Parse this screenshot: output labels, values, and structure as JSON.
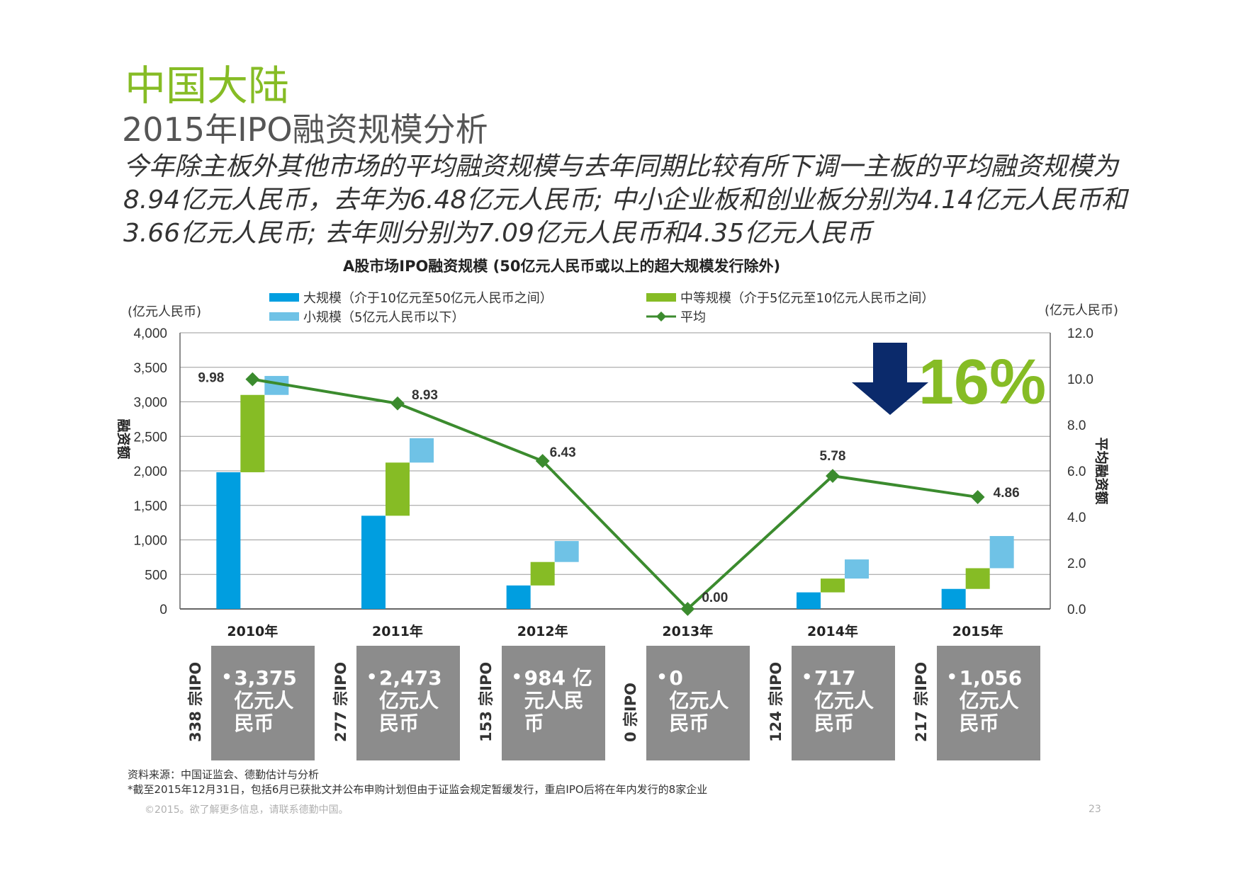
{
  "header": {
    "region": "中国大陆",
    "title": "2015年IPO融资规模分析",
    "summary": "今年除主板外其他市场的平均融资规模与去年同期比较有所下调一主板的平均融资规模为8.94亿元人民币，去年为6.48亿元人民币; 中小企业板和创业板分别为4.14亿元人民币和3.66亿元人民币; 去年则分别为7.09亿元人民币和4.35亿元人民币"
  },
  "chart_data": {
    "type": "bar",
    "title": "A股市场IPO融资规模 (50亿元人民币或以上的超大规模发行除外)",
    "categories": [
      "2010年",
      "2011年",
      "2012年",
      "2013年",
      "2014年",
      "2015年"
    ],
    "y_left": {
      "unit": "(亿元人民币)",
      "label": "融资额",
      "ylim": [
        0,
        4000
      ],
      "ticks": [
        "0",
        "500",
        "1,000",
        "1,500",
        "2,000",
        "2,500",
        "3,000",
        "3,500",
        "4,000"
      ]
    },
    "y_right": {
      "unit": "(亿元人民币)",
      "label": "平均融资额",
      "ylim": [
        0,
        12
      ],
      "ticks": [
        "0.0",
        "2.0",
        "4.0",
        "6.0",
        "8.0",
        "10.0",
        "12.0"
      ]
    },
    "series": [
      {
        "name": "大规模（介于10亿元至50亿元人民币之间）",
        "color": "#009ee0",
        "values": [
          1980,
          1350,
          340,
          0,
          240,
          290
        ]
      },
      {
        "name": "中等规模（介于5亿元至10亿元人民币之间）",
        "color": "#86bc25",
        "values": [
          1120,
          770,
          340,
          0,
          200,
          300
        ]
      },
      {
        "name": "小规模（5亿元人民币以下）",
        "color": "#6fc2e6",
        "values": [
          275,
          353,
          304,
          0,
          277,
          466
        ]
      },
      {
        "name": "平均",
        "color": "#3b8b2e",
        "type": "line",
        "values": [
          9.98,
          8.93,
          6.43,
          0.0,
          5.78,
          4.86
        ],
        "labels": [
          "9.98",
          "8.93",
          "6.43",
          "0.00",
          "5.78",
          "4.86"
        ]
      }
    ],
    "legend_placement": "top",
    "grid": true,
    "annotation": {
      "text": "16%",
      "arrow": "down",
      "arrow_color": "#0b2a6b"
    }
  },
  "stats": [
    {
      "deals": "338 宗IPO",
      "amount": "3,375",
      "unit": "亿元人民币"
    },
    {
      "deals": "277 宗IPO",
      "amount": "2,473",
      "unit": "亿元人民币"
    },
    {
      "deals": "153 宗IPO",
      "amount": "984 亿",
      "unit": "元人民币"
    },
    {
      "deals": "0 宗IPO",
      "amount": "0",
      "unit": "亿元人民币"
    },
    {
      "deals": "124 宗IPO",
      "amount": "717",
      "unit": "亿元人民币"
    },
    {
      "deals": "217 宗IPO",
      "amount": "1,056",
      "unit": "亿元人民币"
    }
  ],
  "footer": {
    "source": "资料来源：中国证监会、德勤估计与分析",
    "note": "*截至2015年12月31日，包括6月已获批文并公布申购计划但由于证监会规定暂缓发行，重启IPO后将在年内发行的8家企业",
    "copyright": "©2015。欲了解更多信息，请联系德勤中国。",
    "page": "23"
  }
}
